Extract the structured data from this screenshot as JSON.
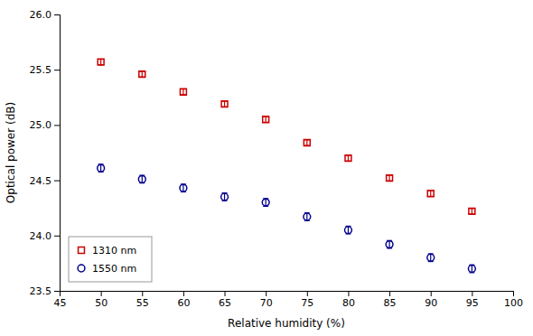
{
  "chart_data": {
    "type": "scatter",
    "xlabel": "Relative humidity (%)",
    "ylabel": "Optical power  (dB)",
    "x": [
      50,
      55,
      60,
      65,
      70,
      75,
      80,
      85,
      90,
      95
    ],
    "series": [
      {
        "name": "1310 nm",
        "color": "#cc0000",
        "marker": "square",
        "values": [
          25.57,
          25.46,
          25.3,
          25.19,
          25.05,
          24.84,
          24.7,
          24.52,
          24.38,
          24.22
        ],
        "errors": [
          0.025,
          0.025,
          0.025,
          0.025,
          0.025,
          0.025,
          0.025,
          0.025,
          0.025,
          0.025
        ]
      },
      {
        "name": "1550 nm",
        "color": "#00008b",
        "marker": "circle",
        "values": [
          24.61,
          24.51,
          24.43,
          24.35,
          24.3,
          24.17,
          24.05,
          23.92,
          23.8,
          23.7
        ],
        "errors": [
          0.035,
          0.035,
          0.035,
          0.035,
          0.035,
          0.035,
          0.035,
          0.035,
          0.035,
          0.035
        ]
      }
    ],
    "xlim": [
      45,
      100
    ],
    "ylim": [
      23.5,
      26.0
    ],
    "xticks": [
      45,
      50,
      55,
      60,
      65,
      70,
      75,
      80,
      85,
      90,
      95,
      100
    ],
    "yticks": [
      23.5,
      {
        "value": 24.0,
        "label": "24.0"
      },
      24.5,
      {
        "value": 25.0,
        "label": "25.0"
      },
      25.5,
      {
        "value": 26.0,
        "label": "26.0"
      }
    ],
    "legend": "lower left",
    "grid": false
  }
}
